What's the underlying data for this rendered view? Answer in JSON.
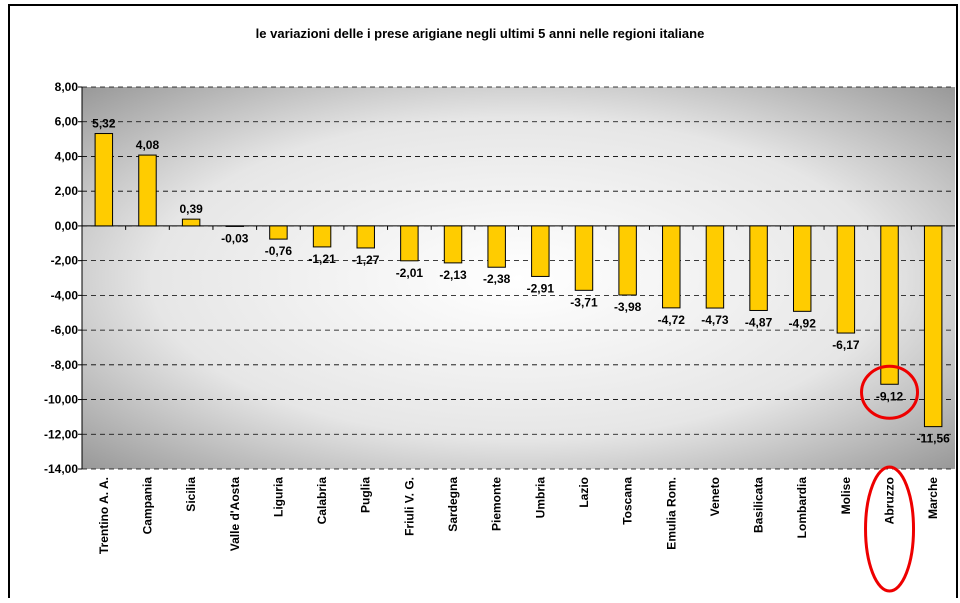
{
  "chart_data": {
    "type": "bar",
    "title": "le variazioni delle i prese arigiane negli ultimi 5 anni nelle regioni italiane",
    "categories": [
      "Trentino A. A.",
      "Campania",
      "Sicilia",
      "Valle d'Aosta",
      "Liguria",
      "Calabria",
      "Puglia",
      "Friuli V. G.",
      "Sardegna",
      "Piemonte",
      "Umbria",
      "Lazio",
      "Toscana",
      "Emulia Rom.",
      "Veneto",
      "Basilicata",
      "Lombardia",
      "Molise",
      "Abruzzo",
      "Marche"
    ],
    "values": [
      5.32,
      4.08,
      0.39,
      -0.03,
      -0.76,
      -1.21,
      -1.27,
      -2.01,
      -2.13,
      -2.38,
      -2.91,
      -3.71,
      -3.98,
      -4.72,
      -4.73,
      -4.87,
      -4.92,
      -6.17,
      -9.12,
      -11.56
    ],
    "value_labels": [
      "5,32",
      "4,08",
      "0,39",
      "-0,03",
      "-0,76",
      "-1,21",
      "-1,27",
      "-2,01",
      "-2,13",
      "-2,38",
      "-2,91",
      "-3,71",
      "-3,98",
      "-4,72",
      "-4,73",
      "-4,87",
      "-4,92",
      "-6,17",
      "-9,12",
      "-11,56"
    ],
    "color": "#ffcc00",
    "ylim": [
      -14,
      8
    ],
    "yticks": [
      {
        "value": -14,
        "label": "-14,00"
      },
      {
        "value": -12,
        "label": "-12,00"
      },
      {
        "value": -10,
        "label": "-10,00"
      },
      {
        "value": -8,
        "label": "-8,00"
      },
      {
        "value": -6,
        "label": "-6,00"
      },
      {
        "value": -4,
        "label": "-4,00"
      },
      {
        "value": -2,
        "label": "-2,00"
      },
      {
        "value": 0,
        "label": "0,00"
      },
      {
        "value": 2,
        "label": "2,00"
      },
      {
        "value": 4,
        "label": "4,00"
      },
      {
        "value": 6,
        "label": "6,00"
      },
      {
        "value": 8,
        "label": "8,00"
      }
    ],
    "grid": true
  }
}
